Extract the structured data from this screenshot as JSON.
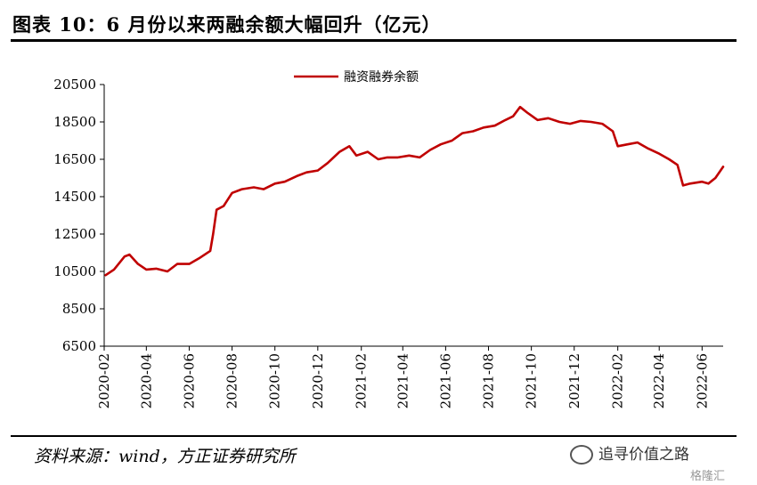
{
  "header": {
    "title": "图表 10：6 月份以来两融余额大幅回升（亿元）"
  },
  "footer": {
    "source": "资料来源：wind，方正证券研究所"
  },
  "watermark": {
    "text": "追寻价值之路",
    "sub": "格隆汇"
  },
  "colors": {
    "line": "#c00000",
    "axis": "#000000"
  },
  "chart_data": {
    "type": "line",
    "title": "图表 10：6 月份以来两融余额大幅回升（亿元）",
    "legend": {
      "position": "top-center",
      "entries": [
        "融资融券余额"
      ]
    },
    "grid": false,
    "ylim": [
      6500,
      20500
    ],
    "yticks": [
      6500,
      8500,
      10500,
      12500,
      14500,
      16500,
      18500,
      20500
    ],
    "xlim": [
      "2020-02",
      "2022-07"
    ],
    "xticks": [
      "2020-02",
      "2020-04",
      "2020-06",
      "2020-08",
      "2020-10",
      "2020-12",
      "2021-02",
      "2021-04",
      "2021-06",
      "2021-08",
      "2021-10",
      "2021-12",
      "2022-02",
      "2022-04",
      "2022-06"
    ],
    "series": [
      {
        "name": "融资融券余额",
        "color": "#c00000",
        "x": [
          "2020-02-03",
          "2020-02-15",
          "2020-03-01",
          "2020-03-08",
          "2020-03-20",
          "2020-04-01",
          "2020-04-15",
          "2020-05-01",
          "2020-05-15",
          "2020-06-01",
          "2020-06-15",
          "2020-07-01",
          "2020-07-05",
          "2020-07-10",
          "2020-07-20",
          "2020-08-01",
          "2020-08-15",
          "2020-09-01",
          "2020-09-15",
          "2020-10-01",
          "2020-10-15",
          "2020-11-01",
          "2020-11-15",
          "2020-12-01",
          "2020-12-15",
          "2021-01-01",
          "2021-01-15",
          "2021-01-25",
          "2021-02-10",
          "2021-02-25",
          "2021-03-10",
          "2021-03-25",
          "2021-04-10",
          "2021-04-25",
          "2021-05-10",
          "2021-05-25",
          "2021-06-10",
          "2021-06-25",
          "2021-07-10",
          "2021-07-25",
          "2021-08-10",
          "2021-08-25",
          "2021-09-05",
          "2021-09-15",
          "2021-09-25",
          "2021-10-10",
          "2021-10-25",
          "2021-11-10",
          "2021-11-25",
          "2021-12-10",
          "2021-12-25",
          "2022-01-10",
          "2022-01-25",
          "2022-02-01",
          "2022-02-15",
          "2022-03-01",
          "2022-03-15",
          "2022-04-01",
          "2022-04-15",
          "2022-04-27",
          "2022-05-05",
          "2022-05-15",
          "2022-06-01",
          "2022-06-10",
          "2022-06-20",
          "2022-07-01"
        ],
        "values": [
          10300,
          10600,
          11300,
          11400,
          10900,
          10600,
          10650,
          10500,
          10900,
          10900,
          11200,
          11600,
          12500,
          13800,
          14000,
          14700,
          14900,
          15000,
          14900,
          15200,
          15300,
          15600,
          15800,
          15900,
          16300,
          16900,
          17200,
          16700,
          16900,
          16500,
          16600,
          16600,
          16700,
          16600,
          17000,
          17300,
          17500,
          17900,
          18000,
          18200,
          18300,
          18600,
          18800,
          19300,
          19000,
          18600,
          18700,
          18500,
          18400,
          18550,
          18500,
          18400,
          18000,
          17200,
          17300,
          17400,
          17100,
          16800,
          16500,
          16200,
          15100,
          15200,
          15300,
          15200,
          15500,
          16100
        ]
      }
    ]
  }
}
